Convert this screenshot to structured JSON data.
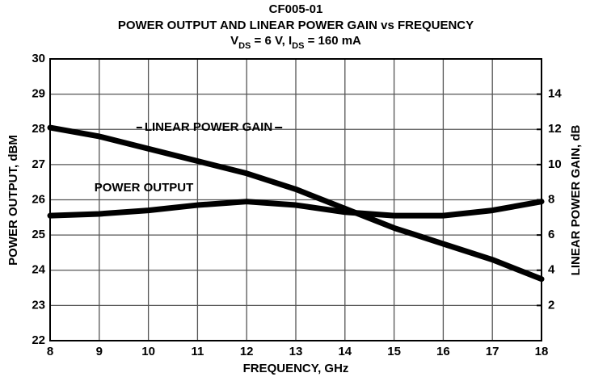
{
  "chart_data": {
    "type": "line",
    "title": "CF005-01",
    "subtitle": "POWER OUTPUT AND LINEAR POWER GAIN vs FREQUENCY",
    "conditions": [
      "V",
      "DS",
      " = 6 V, I",
      "DS",
      " = 160 mA"
    ],
    "xlabel": "FREQUENCY, GHz",
    "ylabel": "POWER OUTPUT, dBM",
    "y2label": "LINEAR POWER GAIN, dB",
    "x": [
      8,
      9,
      10,
      11,
      12,
      13,
      14,
      15,
      16,
      17,
      18
    ],
    "series": [
      {
        "name": "LINEAR POWER GAIN",
        "color": "#000000",
        "axis": "y2",
        "values": [
          12.1,
          11.6,
          10.9,
          10.2,
          9.5,
          8.6,
          7.5,
          6.4,
          5.5,
          4.6,
          3.5
        ]
      },
      {
        "name": "POWER OUTPUT",
        "color": "#000000",
        "values": [
          25.55,
          25.6,
          25.7,
          25.85,
          25.95,
          25.85,
          25.65,
          25.55,
          25.55,
          25.7,
          25.95
        ]
      }
    ],
    "xlim": [
      8,
      18
    ],
    "xticks": [
      8,
      9,
      10,
      11,
      12,
      13,
      14,
      15,
      16,
      17,
      18
    ],
    "ylim": [
      22,
      30
    ],
    "yticks": [
      22,
      23,
      24,
      25,
      26,
      27,
      28,
      29,
      30
    ],
    "y2lim": [
      0,
      16
    ],
    "y2ticks": [
      2,
      4,
      6,
      8,
      10,
      12,
      14
    ],
    "grid": true
  }
}
